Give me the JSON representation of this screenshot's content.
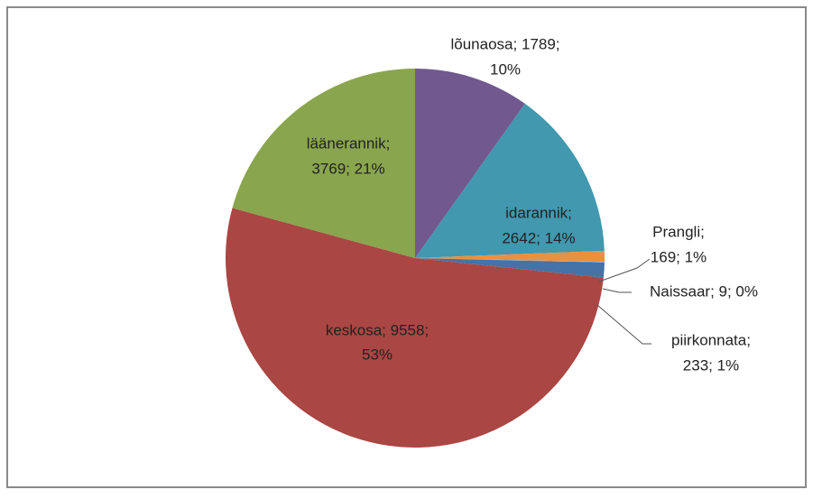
{
  "chart_data": {
    "type": "pie",
    "values": [
      1789,
      2642,
      169,
      9,
      233,
      9558,
      3769
    ],
    "colors": [
      "#71588f",
      "#4198af",
      "#e8913f",
      "#8fb0d8",
      "#4572a7",
      "#aa4643",
      "#89a54e"
    ],
    "data_labels": [
      [
        "lõunaosa; 1789;",
        "10%"
      ],
      [
        "idarannik;",
        "2642; 14%"
      ],
      [
        "Prangli;",
        "169; 1%"
      ],
      [
        "Naissaar; 9; 0%"
      ],
      [
        "piirkonnata;",
        "233; 1%"
      ],
      [
        "keskosa; 9558;",
        "53%"
      ],
      [
        "läänerannik;",
        "3769; 21%"
      ]
    ]
  }
}
